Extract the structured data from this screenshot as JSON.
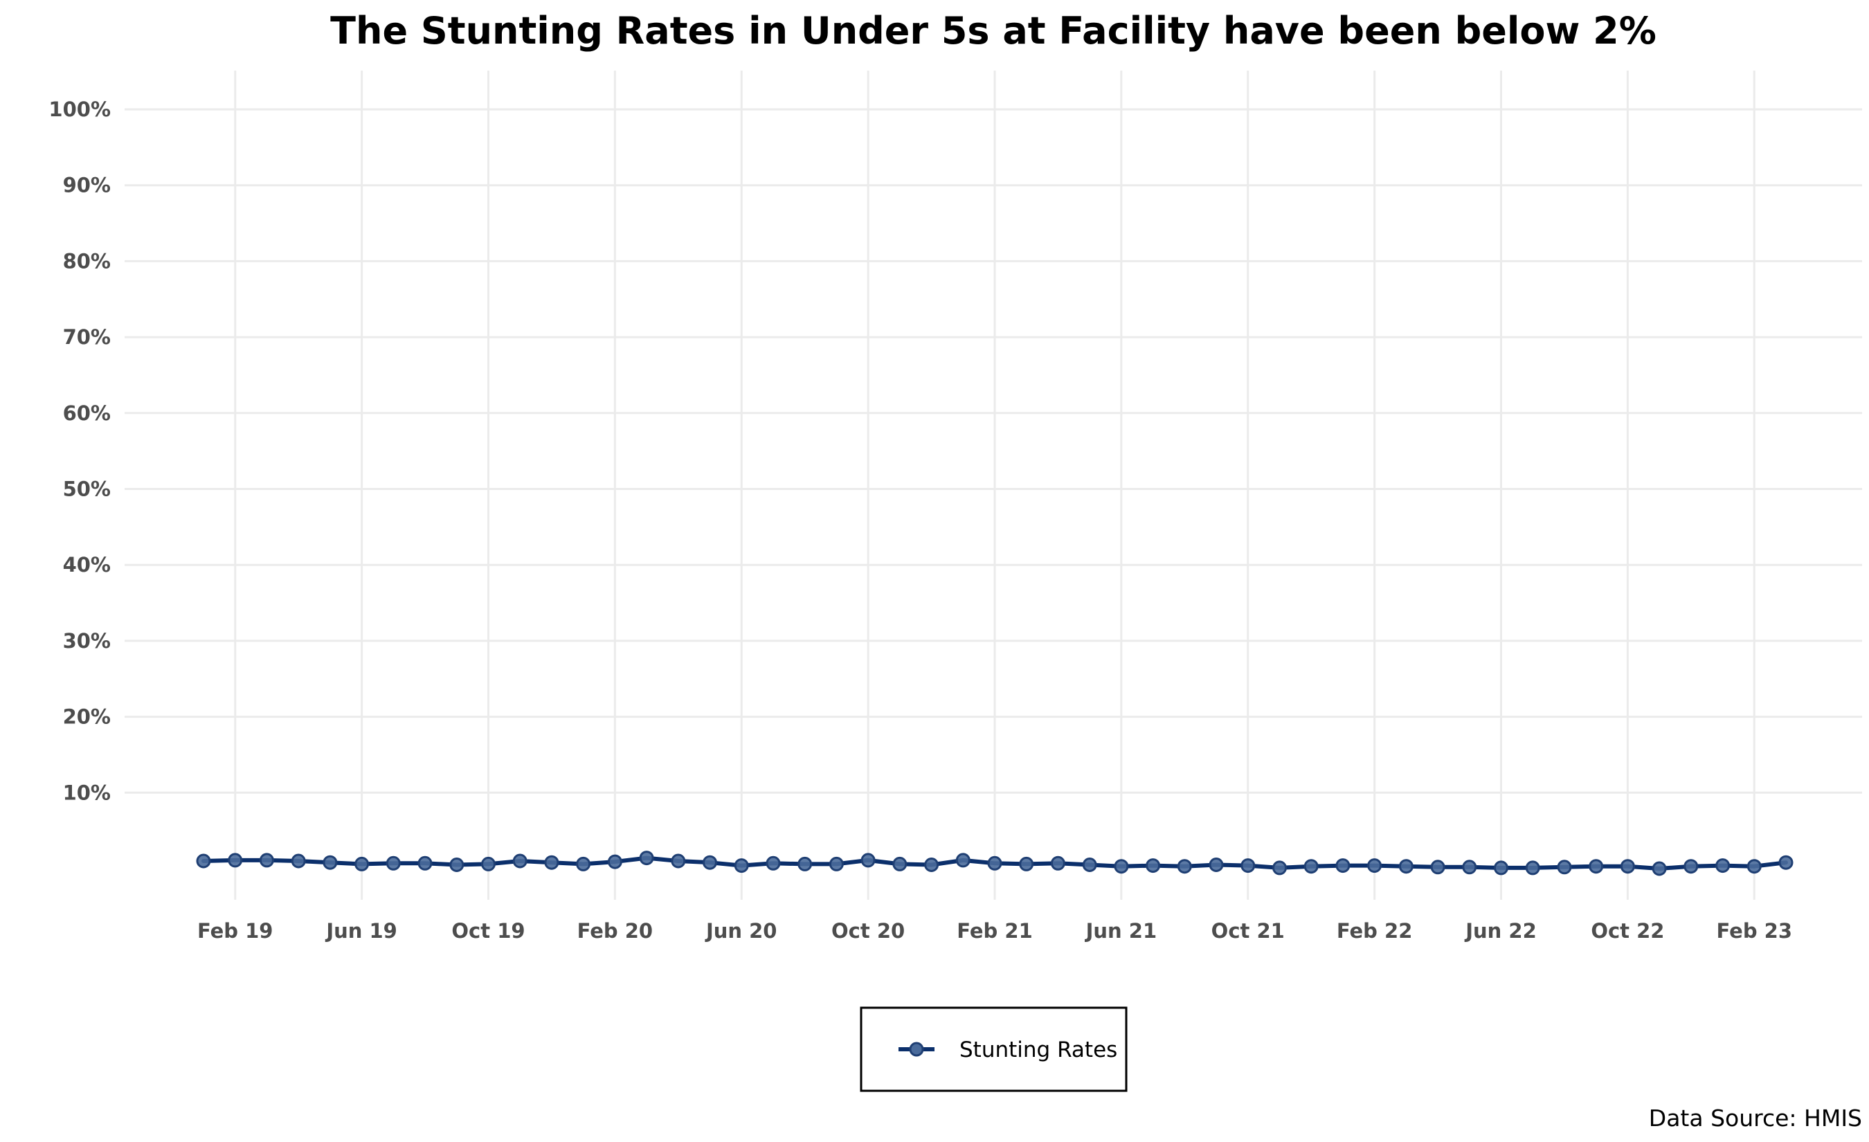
{
  "chart_data": {
    "type": "line",
    "title": "The Stunting Rates in Under 5s at Facility have been below 2%",
    "xlabel": "",
    "ylabel": "",
    "caption": "Data Source: HMIS",
    "x_range": [
      "2019-01",
      "2023-03"
    ],
    "ylim": [
      0,
      100
    ],
    "y_ticks": [
      10,
      20,
      30,
      40,
      50,
      60,
      70,
      80,
      90,
      100
    ],
    "y_tick_labels": [
      "10%",
      "20%",
      "30%",
      "40%",
      "50%",
      "60%",
      "70%",
      "80%",
      "90%",
      "100%"
    ],
    "x_ticks": [
      "2019-02",
      "2019-06",
      "2019-10",
      "2020-02",
      "2020-06",
      "2020-10",
      "2021-02",
      "2021-06",
      "2021-10",
      "2022-02",
      "2022-06",
      "2022-10",
      "2023-02"
    ],
    "x_tick_labels": [
      "Feb 19",
      "Jun 19",
      "Oct 19",
      "Feb 20",
      "Jun 20",
      "Oct 20",
      "Feb 21",
      "Jun 21",
      "Oct 21",
      "Feb 22",
      "Jun 22",
      "Oct 22",
      "Feb 23"
    ],
    "grid": true,
    "legend": "bottom",
    "colors": {
      "line": "#0b2f6b",
      "marker_fill": "#4a6b9b",
      "marker_edge": "#1f3f73",
      "grid": "#ebebeb"
    },
    "series": [
      {
        "name": "Stunting Rates",
        "x": [
          "2019-01",
          "2019-02",
          "2019-03",
          "2019-04",
          "2019-05",
          "2019-06",
          "2019-07",
          "2019-08",
          "2019-09",
          "2019-10",
          "2019-11",
          "2019-12",
          "2020-01",
          "2020-02",
          "2020-03",
          "2020-04",
          "2020-05",
          "2020-06",
          "2020-07",
          "2020-08",
          "2020-09",
          "2020-10",
          "2020-11",
          "2020-12",
          "2021-01",
          "2021-02",
          "2021-03",
          "2021-04",
          "2021-05",
          "2021-06",
          "2021-07",
          "2021-08",
          "2021-09",
          "2021-10",
          "2021-11",
          "2021-12",
          "2022-01",
          "2022-02",
          "2022-03",
          "2022-04",
          "2022-05",
          "2022-06",
          "2022-07",
          "2022-08",
          "2022-09",
          "2022-10",
          "2022-11",
          "2022-12",
          "2023-01",
          "2023-02",
          "2023-03"
        ],
        "values": [
          1.0,
          1.1,
          1.1,
          1.0,
          0.8,
          0.6,
          0.7,
          0.7,
          0.5,
          0.6,
          1.0,
          0.8,
          0.6,
          0.9,
          1.4,
          1.0,
          0.8,
          0.4,
          0.7,
          0.6,
          0.6,
          1.1,
          0.6,
          0.5,
          1.1,
          0.7,
          0.6,
          0.7,
          0.5,
          0.3,
          0.4,
          0.3,
          0.5,
          0.4,
          0.1,
          0.3,
          0.4,
          0.4,
          0.3,
          0.2,
          0.2,
          0.1,
          0.1,
          0.2,
          0.3,
          0.3,
          0.0,
          0.3,
          0.4,
          0.3,
          0.8
        ]
      }
    ]
  }
}
